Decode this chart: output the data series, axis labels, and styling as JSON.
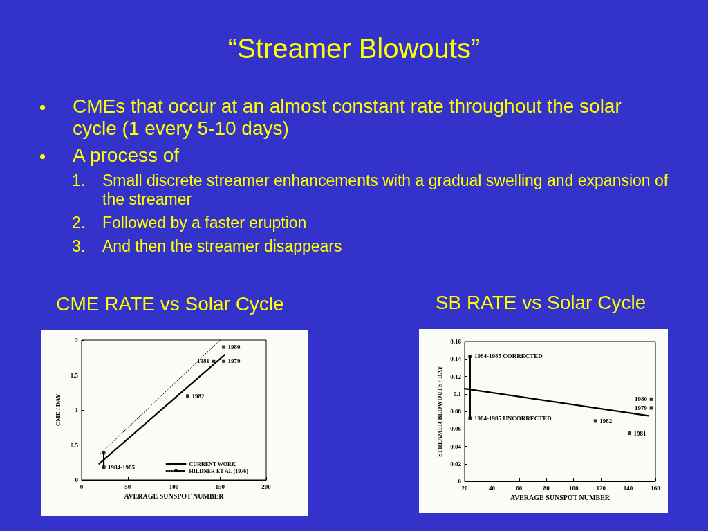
{
  "chart_data": [
    {
      "type": "other",
      "title": "“Streamer Blowouts”",
      "annotations": [
        "CMEs that occur at an almost constant rate throughout the solar cycle (1 every 5-10 days)",
        "A process of",
        "1. Small discrete streamer enhancements with a gradual swelling and expansion of the streamer",
        "2. Followed by a faster eruption",
        "3. And then the streamer disappears"
      ]
    },
    {
      "type": "scatter",
      "title": "CME RATE vs Solar Cycle",
      "xlabel": "AVERAGE SUNSPOT NUMBER",
      "ylabel": "CME / DAY",
      "xlim": [
        0,
        200
      ],
      "xticks": [
        0,
        50,
        100,
        150,
        200
      ],
      "ylim": [
        0,
        2
      ],
      "yticks": [
        0,
        0.5,
        1,
        1.5,
        2
      ],
      "marker": "square",
      "legend": "bottom right",
      "grid": false,
      "series": [
        {
          "type": "line",
          "name": "CURRENT WORK",
          "color": "#000000",
          "x": [
            19,
            155
          ],
          "values": [
            0.23,
            1.79
          ],
          "line_style": "solid",
          "marker": "none"
        },
        {
          "type": "line",
          "name": "HILDNER ET AL (1976)",
          "color": "#000000",
          "x": [
            20,
            150
          ],
          "values": [
            0.37,
            2.0
          ],
          "line_style": "dotted",
          "marker": "none"
        },
        {
          "type": "line",
          "color": "#000000",
          "x": [
            24,
            24
          ],
          "values": [
            0.18,
            0.39
          ],
          "line_style": "solid",
          "marker": "none"
        },
        {
          "color": "#000000",
          "x": [
            154,
            154,
            143,
            115,
            24,
            24
          ],
          "values": [
            1.9,
            1.7,
            1.7,
            1.2,
            0.39,
            0.18
          ]
        }
      ],
      "annotations": [
        {
          "text": "1980",
          "x": 154,
          "y": 1.9
        },
        {
          "text": "1979",
          "x": 154,
          "y": 1.7
        },
        {
          "text": "1981",
          "x": 143,
          "y": 1.7
        },
        {
          "text": "1982",
          "x": 115,
          "y": 1.2
        },
        {
          "text": "1984-1985",
          "x": 24,
          "y": 0.18
        }
      ]
    },
    {
      "type": "scatter",
      "title": "SB RATE vs Solar Cycle",
      "xlabel": "AVERAGE SUNSPOT NUMBER",
      "ylabel": "STREAMER BLOWOUTS / DAY",
      "xlim": [
        20,
        160
      ],
      "xticks": [
        20,
        40,
        60,
        80,
        100,
        120,
        140,
        160
      ],
      "ylim": [
        0,
        0.16
      ],
      "yticks": [
        0,
        0.02,
        0.04,
        0.06,
        0.08,
        0.1,
        0.12,
        0.14,
        0.16
      ],
      "marker": "square",
      "grid": false,
      "series": [
        {
          "type": "line",
          "color": "#000000",
          "x": [
            20,
            155
          ],
          "values": [
            0.106,
            0.075
          ],
          "line_style": "solid",
          "marker": "none"
        },
        {
          "type": "line",
          "color": "#000000",
          "x": [
            24,
            24
          ],
          "values": [
            0.072,
            0.143
          ],
          "line_style": "solid",
          "marker": "none"
        },
        {
          "color": "#000000",
          "x": [
            157,
            157,
            116,
            141,
            24,
            24
          ],
          "values": [
            0.094,
            0.084,
            0.069,
            0.055,
            0.143,
            0.072
          ]
        }
      ],
      "annotations": [
        {
          "text": "1984-1985 CORRECTED",
          "x": 24,
          "y": 0.143
        },
        {
          "text": "1984-1985 UNCORRECTED",
          "x": 24,
          "y": 0.072
        },
        {
          "text": "1980",
          "x": 157,
          "y": 0.094
        },
        {
          "text": "1979",
          "x": 157,
          "y": 0.084
        },
        {
          "text": "1982",
          "x": 116,
          "y": 0.069
        },
        {
          "text": "1981",
          "x": 141,
          "y": 0.055
        }
      ]
    }
  ]
}
